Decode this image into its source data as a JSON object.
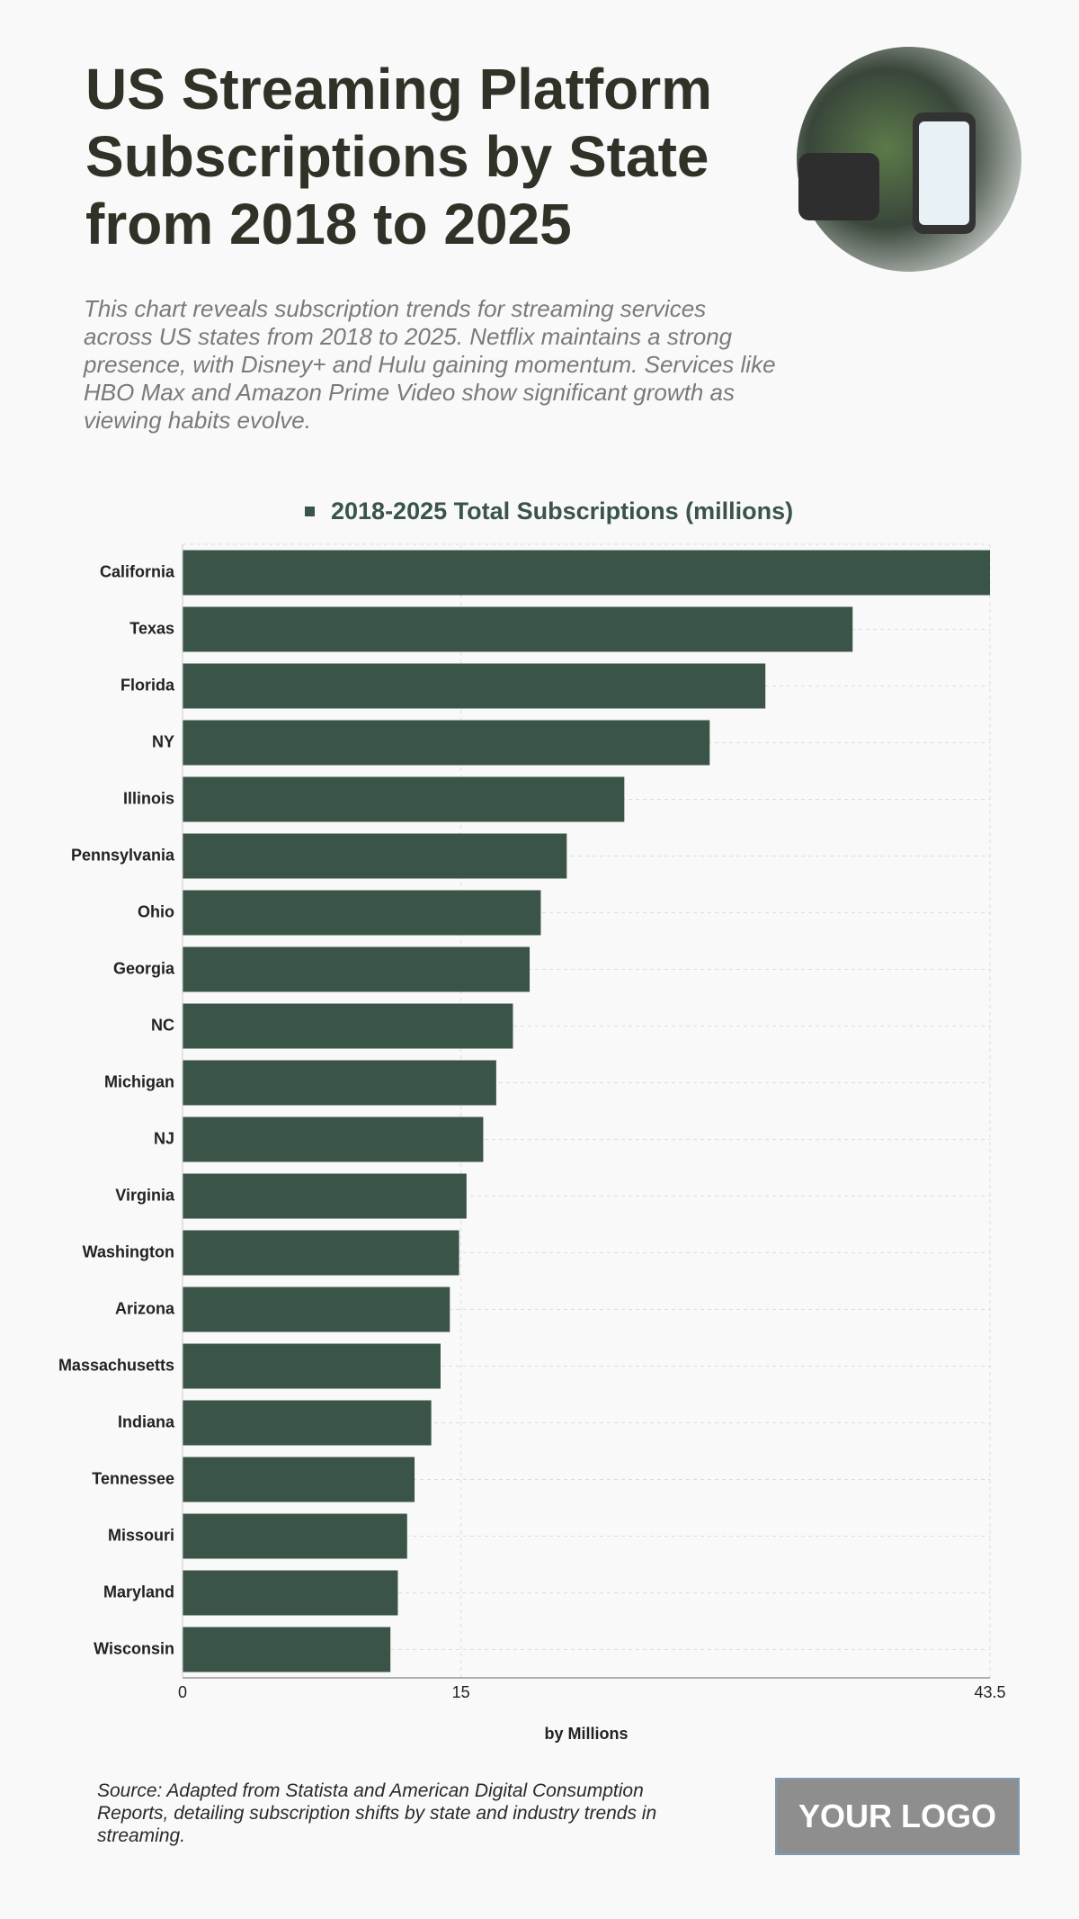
{
  "chart_data": {
    "type": "bar",
    "orientation": "horizontal",
    "title": "US Streaming Platform Subscriptions by State from 2018 to 2025",
    "subtitle": "This chart reveals subscription trends for streaming services across US states from 2018 to 2025. Netflix maintains a strong presence, with Disney+ and Hulu gaining momentum. Services like HBO Max and Amazon Prime Video show significant growth as viewing habits evolve.",
    "categories": [
      "California",
      "Texas",
      "Florida",
      "NY",
      "Illinois",
      "Pennsylvania",
      "Ohio",
      "Georgia",
      "NC",
      "Michigan",
      "NJ",
      "Virginia",
      "Washington",
      "Arizona",
      "Massachusetts",
      "Indiana",
      "Tennessee",
      "Missouri",
      "Maryland",
      "Wisconsin"
    ],
    "series": [
      {
        "name": "2018-2025 Total Subscriptions (millions)",
        "color": "#3a5448",
        "values": [
          43.5,
          36.1,
          31.4,
          28.4,
          23.8,
          20.7,
          19.3,
          18.7,
          17.8,
          16.9,
          16.2,
          15.3,
          14.9,
          14.4,
          13.9,
          13.4,
          12.5,
          12.1,
          11.6,
          11.2
        ]
      }
    ],
    "xlim": [
      0,
      43.5
    ],
    "xticks": [
      0,
      15,
      43.5
    ],
    "xlabel": "by Millions",
    "grid": true,
    "legend": "top",
    "source": "Source: Adapted from Statista and American Digital Consumption Reports, detailing subscription shifts by state and industry trends in streaming.",
    "logo": "YOUR LOGO"
  }
}
